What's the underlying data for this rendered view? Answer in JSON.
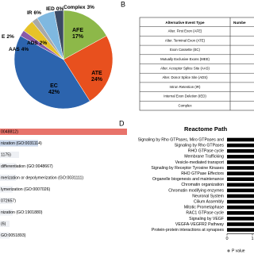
{
  "panel_labels": [
    "B",
    "D"
  ],
  "table": {
    "header": [
      "Alternative Event Type",
      "Numbe"
    ],
    "rows": [
      "Alter. First Exon (AFE)",
      "Alter. Terminal Exon (ATE)",
      "Exon Cassette (EC)",
      "Mutually Exclusive Exons (MEE)",
      "Alter. Acceptor Splice Site (AAS)",
      "Alter. Donor Splice Site (ADS)",
      "Intron Retention (IR)",
      "Internal Exon Deletion (IED)",
      "Complex"
    ]
  },
  "chart_data": [
    {
      "type": "pie",
      "categories": [
        "AFE",
        "ATE",
        "EC",
        "E",
        "AAS",
        "ADS",
        "IR",
        "IED",
        "Complex"
      ],
      "values": [
        17,
        24,
        42,
        2,
        4,
        2,
        6,
        0,
        3
      ],
      "value_labels": [
        "17%",
        "24%",
        "42%",
        "2%",
        "4%",
        "2%",
        "6%",
        "0%",
        "3%"
      ],
      "colors": [
        "#8db849",
        "#e8501e",
        "#2c64ae",
        "#8a5aa8",
        "#e6c229",
        "#a8a8a8",
        "#7fb8e0",
        "#c55a9a",
        "#3b4a63"
      ]
    },
    {
      "type": "barh",
      "categories": [
        "0048812)",
        "nization (GO:0031114)",
        "1175)",
        "differentiation (GO:0048667)",
        "merization or depolymerization (GO:0031111)",
        "lymerization (GO:0007026)",
        "072657)",
        "nization (GO:1901880)",
        "(6)",
        "GO:0051893)"
      ],
      "values": [
        40,
        12,
        6,
        5,
        5,
        4,
        4,
        4,
        3,
        3
      ],
      "colors": [
        "#e8736b",
        "#c9d6ea",
        "#eef0f4",
        "#eef0f4",
        "#eef0f4",
        "#eef0f4",
        "#eef0f4",
        "#eef0f4",
        "#eef0f4",
        "#eef0f4"
      ]
    },
    {
      "type": "barh",
      "title": "Reactome Path",
      "categories": [
        "Signaling by Rho GTPases, Miro GTPases and",
        "Signaling by Rho GTPases",
        "RHO GTPase cycle",
        "Membrane Trafficking",
        "Vesicle-mediated transport",
        "Signaling by Receptor Tyrosine Kinases",
        "RHO GTPase Effectors",
        "Organelle biogenesis and maintenance",
        "Chromatin organization",
        "Chromatin modifying enzymes",
        "Neuronal System",
        "Cilium Assembly",
        "Mitotic Prometaphase",
        "RAC1 GTPase cycle",
        "Signaling by VEGF",
        "VEGFA-VEGFR2 Pathway",
        "Protein-protein interactions at synapses"
      ],
      "series": [
        {
          "name": "P value",
          "color": "#000000",
          "values": [
            2.4,
            2.3,
            2.2,
            2.1,
            2.0,
            2.0,
            1.9,
            1.9,
            1.9,
            1.8,
            1.8,
            1.8,
            1.7,
            1.7,
            1.6,
            1.6,
            1.6
          ]
        }
      ],
      "xlim": [
        0,
        1.2
      ],
      "xticks": [
        0,
        1
      ]
    }
  ]
}
